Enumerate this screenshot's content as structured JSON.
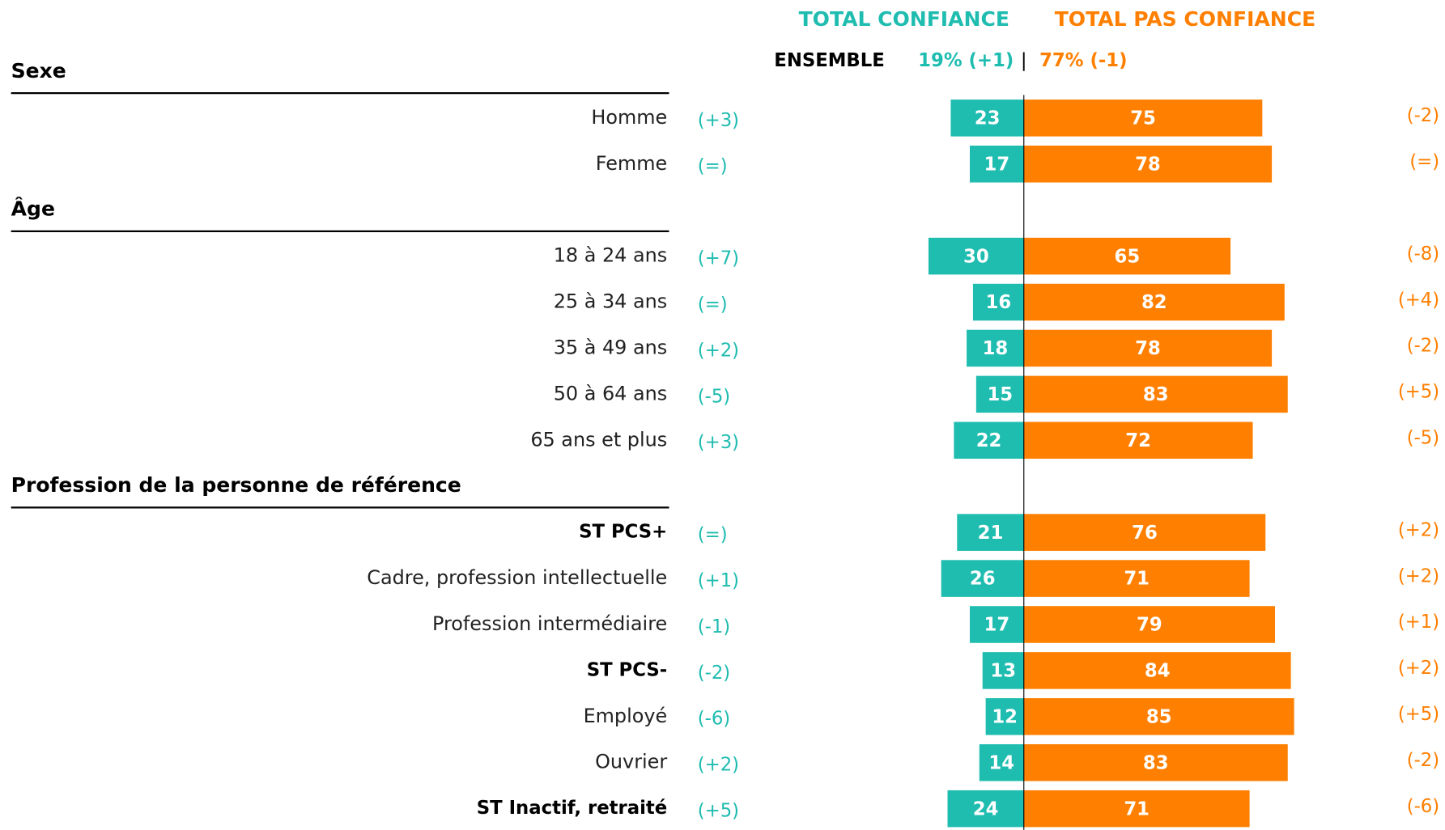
{
  "chart_data": {
    "type": "diverging_bar",
    "legend": [
      "TOTAL CONFIANCE",
      "TOTAL PAS CONFIANCE"
    ],
    "colors": [
      "#1fbcb0",
      "#ff7f00"
    ],
    "total": {
      "label": "ENSEMBLE",
      "left": "19% (+1)",
      "separator": "|",
      "right": "77% (-1)"
    },
    "groups": [
      {
        "title": "Sexe",
        "rows": [
          {
            "label": "Homme",
            "bold": false,
            "values": [
              23,
              75
            ],
            "changes": [
              "(+3)",
              "(-2)"
            ]
          },
          {
            "label": "Femme",
            "bold": false,
            "values": [
              17,
              78
            ],
            "changes": [
              "(=)",
              "(=)"
            ]
          }
        ]
      },
      {
        "title": "Âge",
        "rows": [
          {
            "label": "18 à 24 ans",
            "bold": false,
            "values": [
              30,
              65
            ],
            "changes": [
              "(+7)",
              "(-8)"
            ]
          },
          {
            "label": "25 à 34 ans",
            "bold": false,
            "values": [
              16,
              82
            ],
            "changes": [
              "(=)",
              "(+4)"
            ]
          },
          {
            "label": "35 à 49 ans",
            "bold": false,
            "values": [
              18,
              78
            ],
            "changes": [
              "(+2)",
              "(-2)"
            ]
          },
          {
            "label": "50 à 64 ans",
            "bold": false,
            "values": [
              15,
              83
            ],
            "changes": [
              "(-5)",
              "(+5)"
            ]
          },
          {
            "label": "65 ans et plus",
            "bold": false,
            "values": [
              22,
              72
            ],
            "changes": [
              "(+3)",
              "(-5)"
            ]
          }
        ]
      },
      {
        "title": "Profession de la personne de référence",
        "rows": [
          {
            "label": "ST PCS+",
            "bold": true,
            "values": [
              21,
              76
            ],
            "changes": [
              "(=)",
              "(+2)"
            ]
          },
          {
            "label": "Cadre, profession intellectuelle",
            "bold": false,
            "values": [
              26,
              71
            ],
            "changes": [
              "(+1)",
              "(+2)"
            ]
          },
          {
            "label": "Profession intermédiaire",
            "bold": false,
            "values": [
              17,
              79
            ],
            "changes": [
              "(-1)",
              "(+1)"
            ]
          },
          {
            "label": "ST PCS-",
            "bold": true,
            "values": [
              13,
              84
            ],
            "changes": [
              "(-2)",
              "(+2)"
            ]
          },
          {
            "label": "Employé",
            "bold": false,
            "values": [
              12,
              85
            ],
            "changes": [
              "(-6)",
              "(+5)"
            ]
          },
          {
            "label": "Ouvrier",
            "bold": false,
            "values": [
              14,
              83
            ],
            "changes": [
              "(+2)",
              "(-2)"
            ]
          },
          {
            "label": "ST Inactif, retraité",
            "bold": true,
            "values": [
              24,
              71
            ],
            "changes": [
              "(+5)",
              "(-6)"
            ]
          }
        ]
      }
    ]
  }
}
